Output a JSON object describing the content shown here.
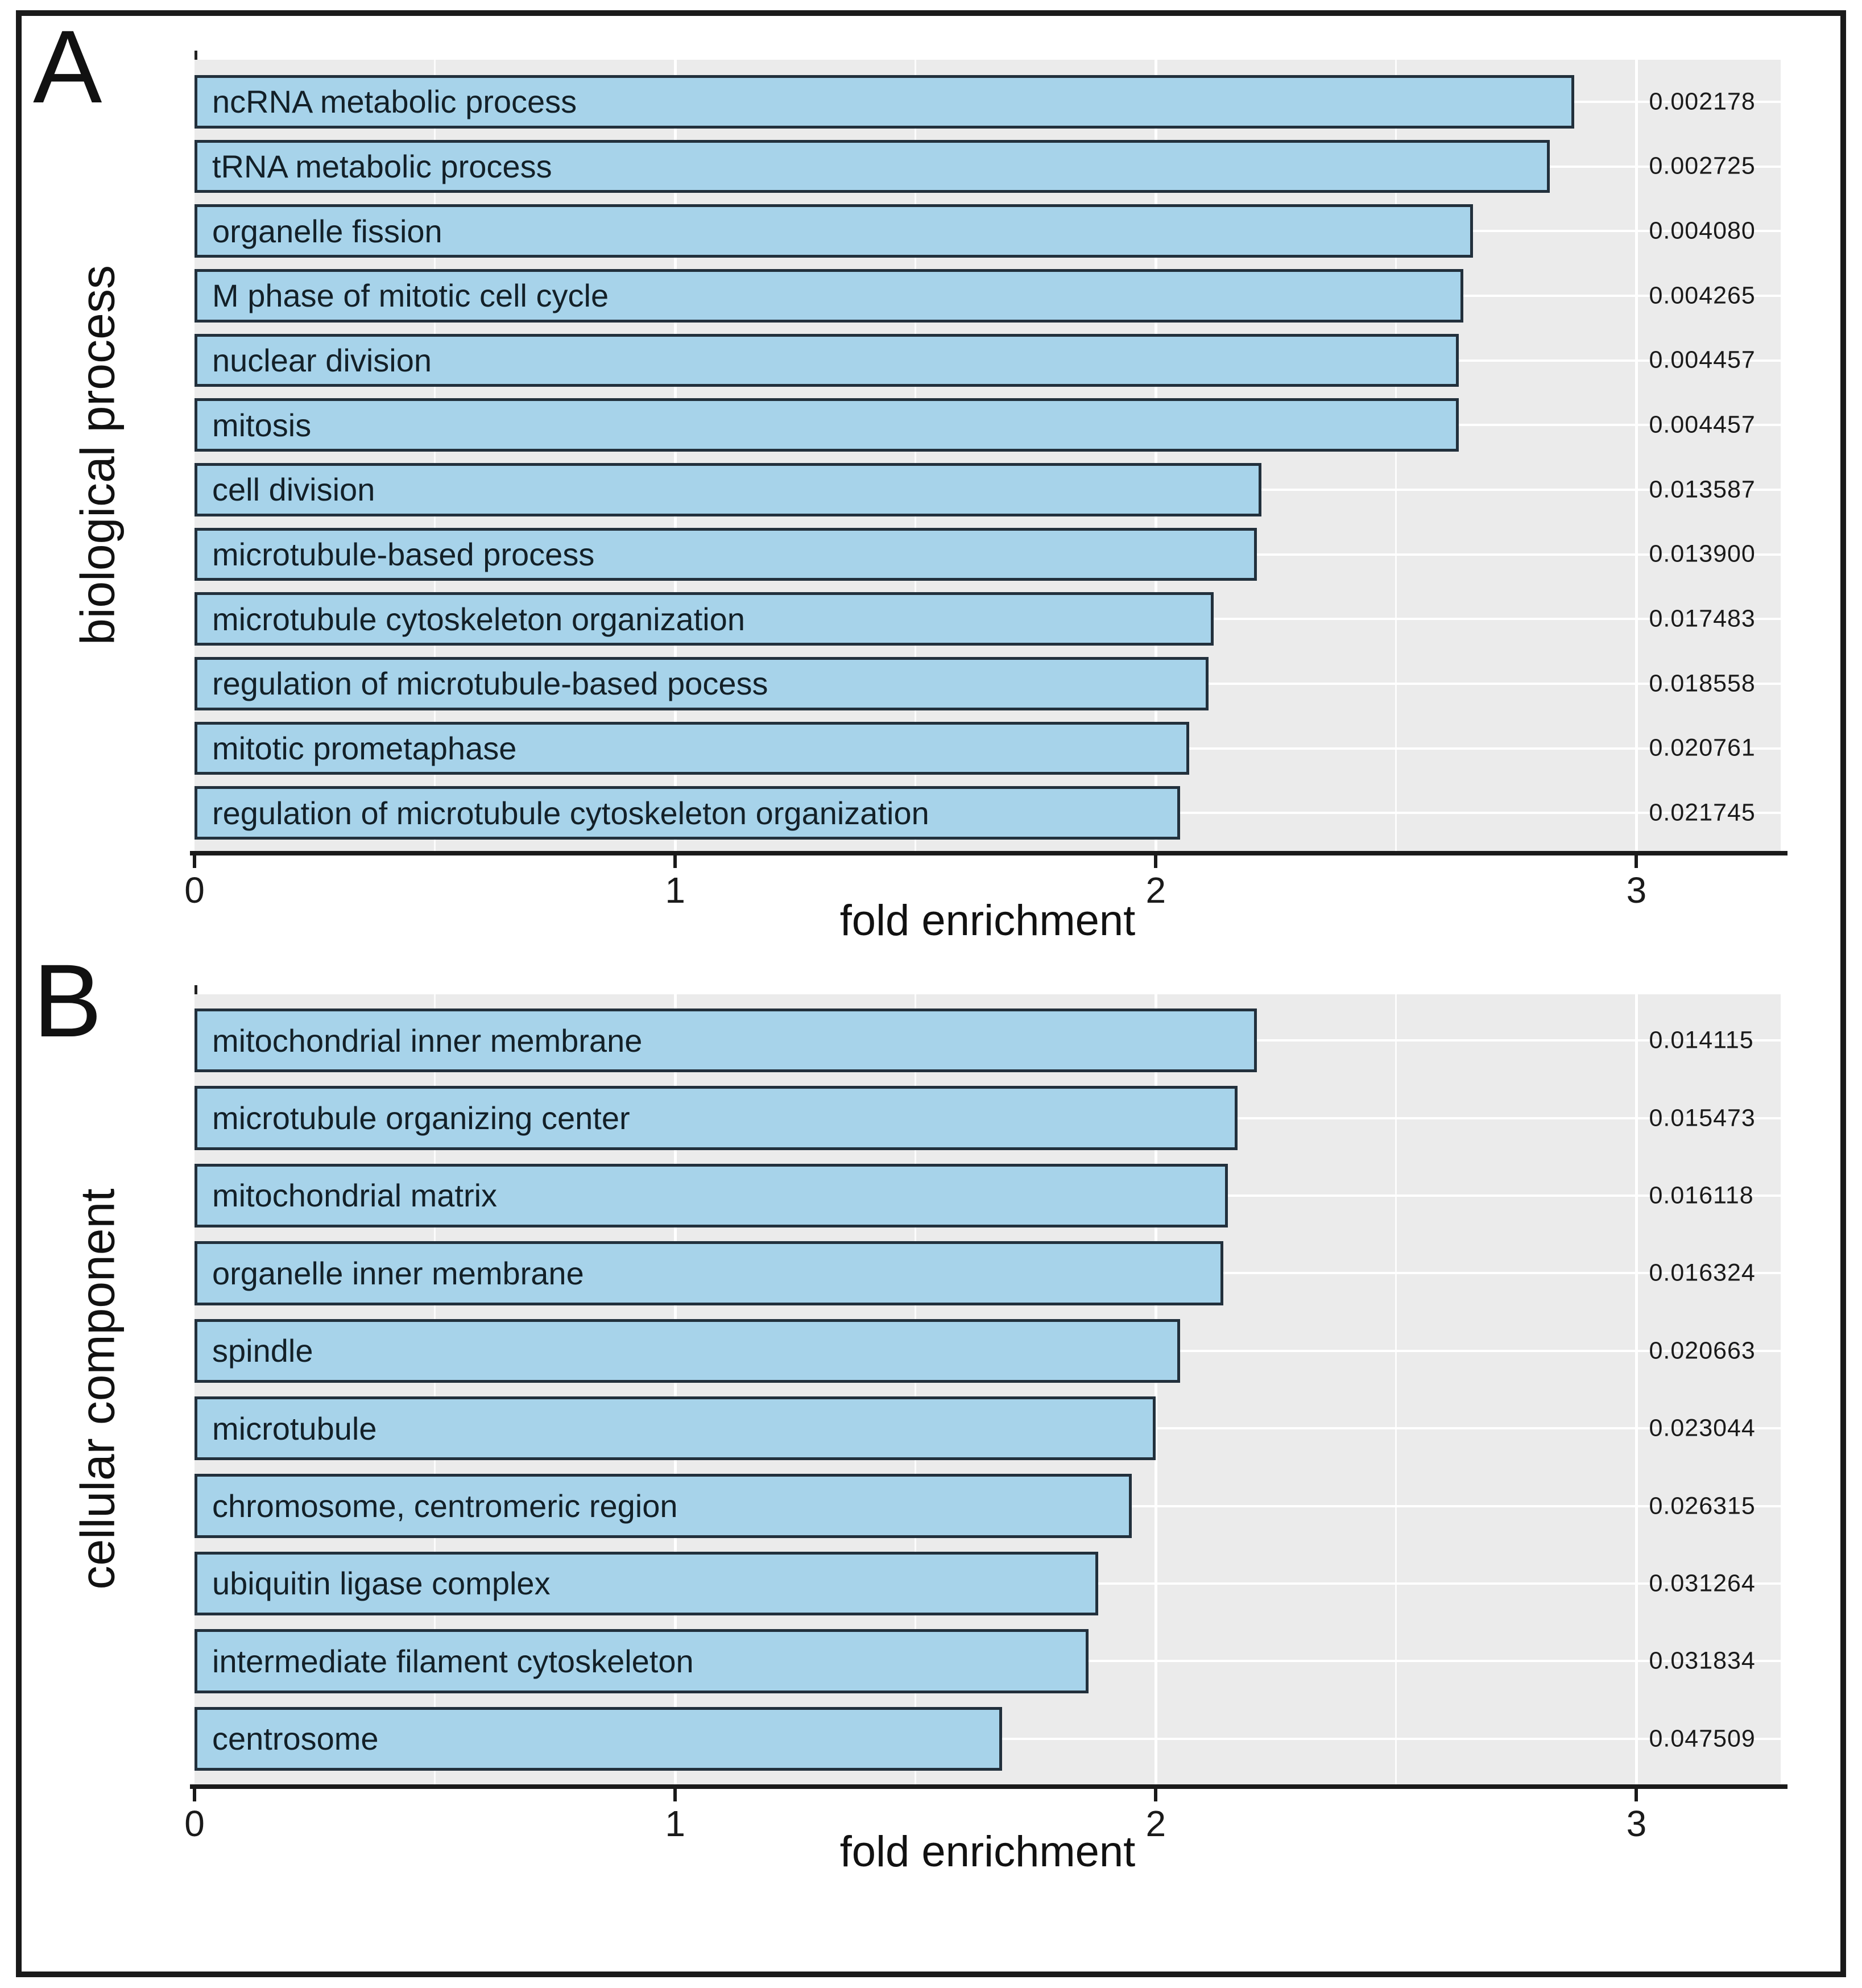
{
  "colors": {
    "bar_fill": "#a7d3ea",
    "bar_border": "#22303c",
    "plot_background": "#ebebeb",
    "gridline": "#ffffff",
    "text": "#1a1a1a",
    "frame_border": "#1a1a1a"
  },
  "chart_data": [
    {
      "type": "bar",
      "orientation": "horizontal",
      "panel_label": "A",
      "ylabel": "biological process",
      "xlabel": "fold enrichment",
      "xlim": [
        0,
        3.3
      ],
      "xticks": [
        "0",
        "1",
        "2",
        "3"
      ],
      "grid": true,
      "legend_position": "none",
      "categories": [
        "ncRNA metabolic process",
        "tRNA metabolic process",
        "organelle fission",
        "M phase of mitotic cell cycle",
        "nuclear division",
        "mitosis",
        "cell division",
        "microtubule-based process",
        "microtubule cytoskeleton organization",
        "regulation of microtubule-based pocess",
        "mitotic prometaphase",
        "regulation of microtubule cytoskeleton organization"
      ],
      "values": [
        2.87,
        2.82,
        2.66,
        2.64,
        2.63,
        2.63,
        2.22,
        2.21,
        2.12,
        2.11,
        2.07,
        2.05
      ],
      "p_values": [
        "0.002178",
        "0.002725",
        "0.004080",
        "0.004265",
        "0.004457",
        "0.004457",
        "0.013587",
        "0.013900",
        "0.017483",
        "0.018558",
        "0.020761",
        "0.021745"
      ]
    },
    {
      "type": "bar",
      "orientation": "horizontal",
      "panel_label": "B",
      "ylabel": "cellular component",
      "xlabel": "fold enrichment",
      "xlim": [
        0,
        3.3
      ],
      "xticks": [
        "0",
        "1",
        "2",
        "3"
      ],
      "grid": true,
      "legend_position": "none",
      "categories": [
        "mitochondrial inner membrane",
        "microtubule organizing center",
        "mitochondrial matrix",
        "organelle inner membrane",
        "spindle",
        "microtubule",
        "chromosome, centromeric region",
        "ubiquitin ligase complex",
        "intermediate filament cytoskeleton",
        "centrosome"
      ],
      "values": [
        2.21,
        2.17,
        2.15,
        2.14,
        2.05,
        2.0,
        1.95,
        1.88,
        1.86,
        1.68
      ],
      "p_values": [
        "0.014115",
        "0.015473",
        "0.016118",
        "0.016324",
        "0.020663",
        "0.023044",
        "0.026315",
        "0.031264",
        "0.031834",
        "0.047509"
      ]
    }
  ]
}
